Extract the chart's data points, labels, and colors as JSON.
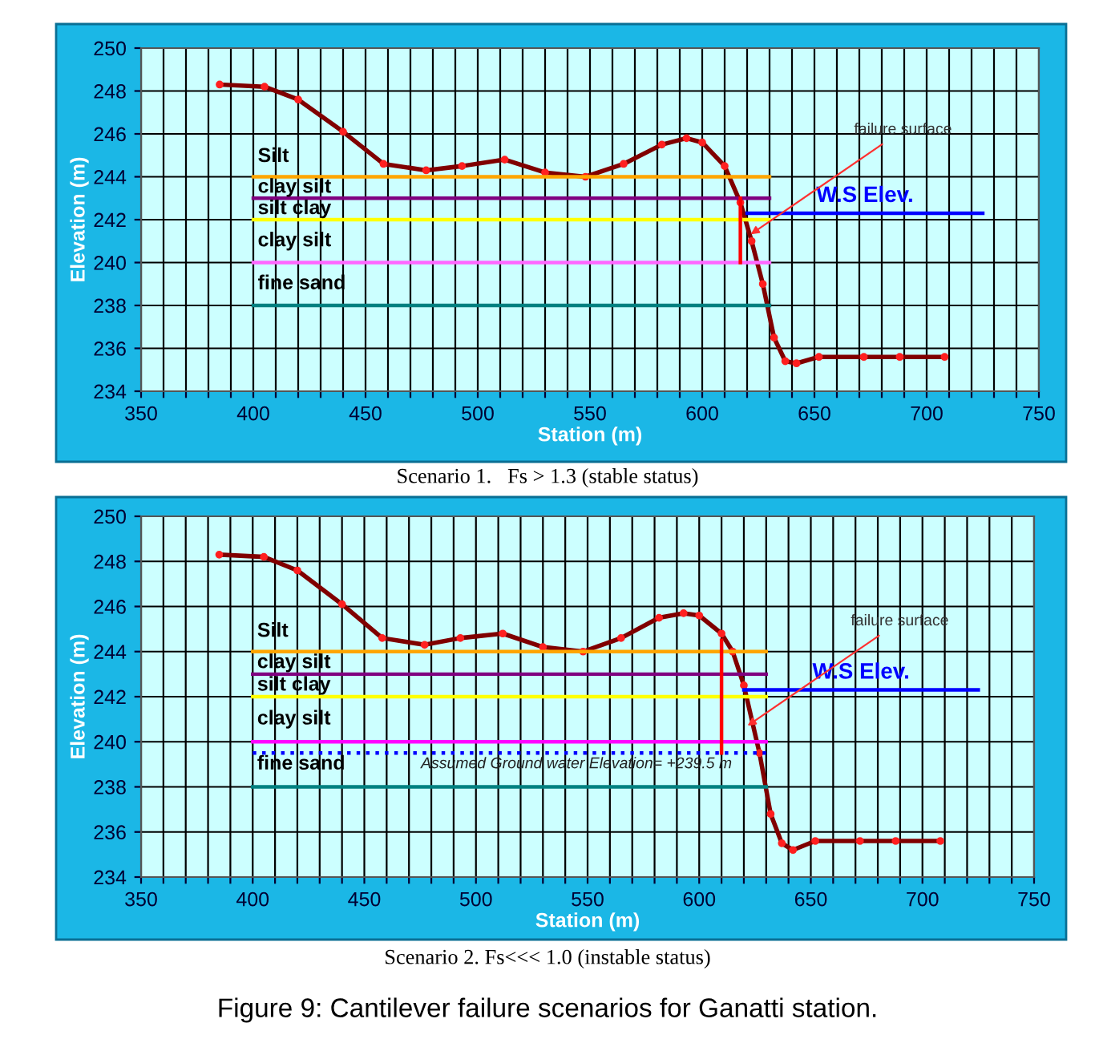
{
  "chart_data": [
    {
      "type": "line",
      "xlabel": "Station (m)",
      "ylabel": "Elevation (m)",
      "xlim": [
        350,
        750
      ],
      "ylim": [
        234,
        250
      ],
      "xticks": [
        350,
        {
          "value": 360,
          "label": null
        },
        {
          "value": 370,
          "label": null
        },
        {
          "value": 380,
          "label": null
        },
        {
          "value": 390,
          "label": null
        },
        400,
        {
          "value": 410,
          "label": null
        },
        {
          "value": 420,
          "label": null
        },
        {
          "value": 430,
          "label": null
        },
        {
          "value": 440,
          "label": null
        },
        450,
        {
          "value": 460,
          "label": null
        },
        {
          "value": 470,
          "label": null
        },
        {
          "value": 480,
          "label": null
        },
        {
          "value": 490,
          "label": null
        },
        500,
        {
          "value": 510,
          "label": null
        },
        {
          "value": 520,
          "label": null
        },
        {
          "value": 530,
          "label": null
        },
        {
          "value": 540,
          "label": null
        },
        550,
        {
          "value": 560,
          "label": null
        },
        {
          "value": 570,
          "label": null
        },
        {
          "value": 580,
          "label": null
        },
        {
          "value": 590,
          "label": null
        },
        600,
        {
          "value": 610,
          "label": null
        },
        {
          "value": 620,
          "label": null
        },
        {
          "value": 630,
          "label": null
        },
        {
          "value": 640,
          "label": null
        },
        650,
        {
          "value": 660,
          "label": null
        },
        {
          "value": 670,
          "label": null
        },
        {
          "value": 680,
          "label": null
        },
        {
          "value": 690,
          "label": null
        },
        700,
        {
          "value": 710,
          "label": null
        },
        {
          "value": 720,
          "label": null
        },
        {
          "value": 730,
          "label": null
        },
        {
          "value": 740,
          "label": null
        },
        750
      ],
      "yticks": [
        234,
        236,
        238,
        240,
        242,
        244,
        246,
        248,
        250
      ],
      "grid": true,
      "series": [
        {
          "color": "#800000",
          "marker": "circle",
          "x": [
            385,
            405,
            420,
            440,
            458,
            477,
            493,
            512,
            530,
            548,
            565,
            582,
            593,
            600,
            610,
            617,
            622,
            627,
            632,
            637,
            642,
            652,
            672,
            688,
            708
          ],
          "values": [
            248.3,
            248.2,
            247.6,
            246.1,
            244.6,
            244.3,
            244.5,
            244.8,
            244.2,
            244.0,
            244.6,
            245.5,
            245.8,
            245.6,
            244.5,
            242.8,
            241.0,
            239.0,
            236.5,
            235.4,
            235.3,
            235.6,
            235.6,
            235.6,
            235.6
          ]
        },
        {
          "color": "#ffa500",
          "x": [
            400,
            630
          ],
          "values": [
            244,
            244
          ]
        },
        {
          "color": "#800080",
          "x": [
            400,
            630
          ],
          "values": [
            243,
            243
          ]
        },
        {
          "color": "#ffff00",
          "x": [
            400,
            630
          ],
          "values": [
            242,
            242
          ]
        },
        {
          "color": "#ff66ff",
          "x": [
            400,
            630
          ],
          "values": [
            240,
            240
          ]
        },
        {
          "color": "#008080",
          "x": [
            400,
            630
          ],
          "values": [
            238,
            238
          ]
        },
        {
          "color": "#ff0000",
          "x": [
            617,
            617
          ],
          "values": [
            240,
            243
          ]
        },
        {
          "name": "W.S Elev.",
          "color": "#0000ff",
          "x": [
            620,
            725
          ],
          "values": [
            242.3,
            242.3
          ]
        }
      ],
      "annotations": [
        "Silt",
        "clay silt",
        "silt clay",
        "clay silt",
        "fine sand",
        {
          "text": "failure surface",
          "x": 620,
          "y": 241.2
        },
        "Scenario 1.   Fs > 1.3 (stable status)"
      ]
    },
    {
      "type": "line",
      "xlabel": "Station (m)",
      "ylabel": "Elevation (m)",
      "xlim": [
        350,
        750
      ],
      "ylim": [
        234,
        250
      ],
      "xticks": [
        350,
        {
          "value": 360,
          "label": null
        },
        {
          "value": 370,
          "label": null
        },
        {
          "value": 380,
          "label": null
        },
        {
          "value": 390,
          "label": null
        },
        400,
        {
          "value": 410,
          "label": null
        },
        {
          "value": 420,
          "label": null
        },
        {
          "value": 430,
          "label": null
        },
        {
          "value": 440,
          "label": null
        },
        450,
        {
          "value": 460,
          "label": null
        },
        {
          "value": 470,
          "label": null
        },
        {
          "value": 480,
          "label": null
        },
        {
          "value": 490,
          "label": null
        },
        500,
        {
          "value": 510,
          "label": null
        },
        {
          "value": 520,
          "label": null
        },
        {
          "value": 530,
          "label": null
        },
        {
          "value": 540,
          "label": null
        },
        550,
        {
          "value": 560,
          "label": null
        },
        {
          "value": 570,
          "label": null
        },
        {
          "value": 580,
          "label": null
        },
        {
          "value": 590,
          "label": null
        },
        600,
        {
          "value": 610,
          "label": null
        },
        {
          "value": 620,
          "label": null
        },
        {
          "value": 630,
          "label": null
        },
        {
          "value": 640,
          "label": null
        },
        650,
        {
          "value": 660,
          "label": null
        },
        {
          "value": 670,
          "label": null
        },
        {
          "value": 680,
          "label": null
        },
        {
          "value": 690,
          "label": null
        },
        700,
        {
          "value": 710,
          "label": null
        },
        {
          "value": 720,
          "label": null
        },
        {
          "value": 730,
          "label": null
        },
        {
          "value": 740,
          "label": null
        },
        750
      ],
      "yticks": [
        234,
        236,
        238,
        240,
        242,
        244,
        246,
        248,
        250
      ],
      "grid": true,
      "series": [
        {
          "color": "#800000",
          "marker": "circle",
          "x": [
            385,
            405,
            420,
            440,
            458,
            477,
            493,
            512,
            530,
            548,
            565,
            582,
            593,
            600,
            610,
            615,
            620,
            627,
            632,
            637,
            642,
            652,
            672,
            688,
            708
          ],
          "values": [
            248.3,
            248.2,
            247.6,
            246.1,
            244.6,
            244.3,
            244.6,
            244.8,
            244.2,
            244.0,
            244.6,
            245.5,
            245.7,
            245.6,
            244.8,
            244.0,
            242.5,
            239.5,
            236.8,
            235.5,
            235.2,
            235.6,
            235.6,
            235.6,
            235.6
          ]
        },
        {
          "color": "#ffa500",
          "x": [
            400,
            630
          ],
          "values": [
            244,
            244
          ]
        },
        {
          "color": "#800080",
          "x": [
            400,
            630
          ],
          "values": [
            243,
            243
          ]
        },
        {
          "color": "#ffff00",
          "x": [
            400,
            630
          ],
          "values": [
            242,
            242
          ]
        },
        {
          "color": "#ff00ff",
          "x": [
            400,
            630
          ],
          "values": [
            240,
            240
          ]
        },
        {
          "color": "#008080",
          "x": [
            400,
            630
          ],
          "values": [
            238,
            238
          ]
        },
        {
          "color": "#0000ff",
          "line_style": "dotted",
          "x": [
            400,
            630
          ],
          "values": [
            239.5,
            239.5
          ]
        },
        {
          "color": "#ff0000",
          "x": [
            610,
            610
          ],
          "values": [
            239.5,
            244.5
          ]
        },
        {
          "name": "W.S Elev.",
          "color": "#0000ff",
          "x": [
            620,
            725
          ],
          "values": [
            242.3,
            242.3
          ]
        }
      ],
      "annotations": [
        "Silt",
        "clay silt",
        "silt clay",
        "clay silt",
        "fine sand",
        "Assumed Ground water Elevation= +239.5 m",
        {
          "text": "failure surface",
          "x": 620,
          "y": 240.6
        },
        "Scenario 2. Fs<<< 1.0 (instable status)",
        "Figure 9: Cantilever failure scenarios for Ganatti station."
      ]
    }
  ]
}
